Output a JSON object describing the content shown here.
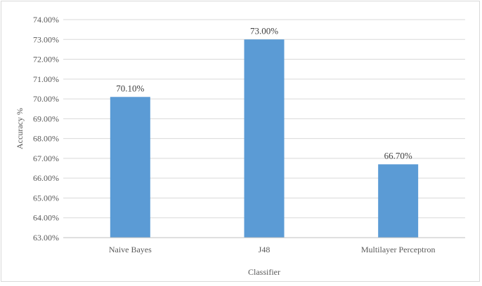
{
  "chart_data": {
    "type": "bar",
    "categories": [
      "Naive Bayes",
      "J48",
      "Multilayer Perceptron"
    ],
    "values": [
      70.1,
      73.0,
      66.7
    ],
    "data_labels": [
      "70.10%",
      "73.00%",
      "66.70%"
    ],
    "y_ticks": [
      63,
      64,
      65,
      66,
      67,
      68,
      69,
      70,
      71,
      72,
      73,
      74
    ],
    "y_tick_labels": [
      "63.00%",
      "64.00%",
      "65.00%",
      "66.00%",
      "67.00%",
      "68.00%",
      "69.00%",
      "70.00%",
      "71.00%",
      "72.00%",
      "73.00%",
      "74.00%"
    ],
    "title": "",
    "xlabel": "Classifier",
    "ylabel": "Accuracy %",
    "ylim": [
      63,
      74
    ],
    "grid": true,
    "colors": {
      "bar": "#5b9bd5",
      "grid": "#d9d9d9",
      "axis": "#bfbfbf"
    }
  }
}
